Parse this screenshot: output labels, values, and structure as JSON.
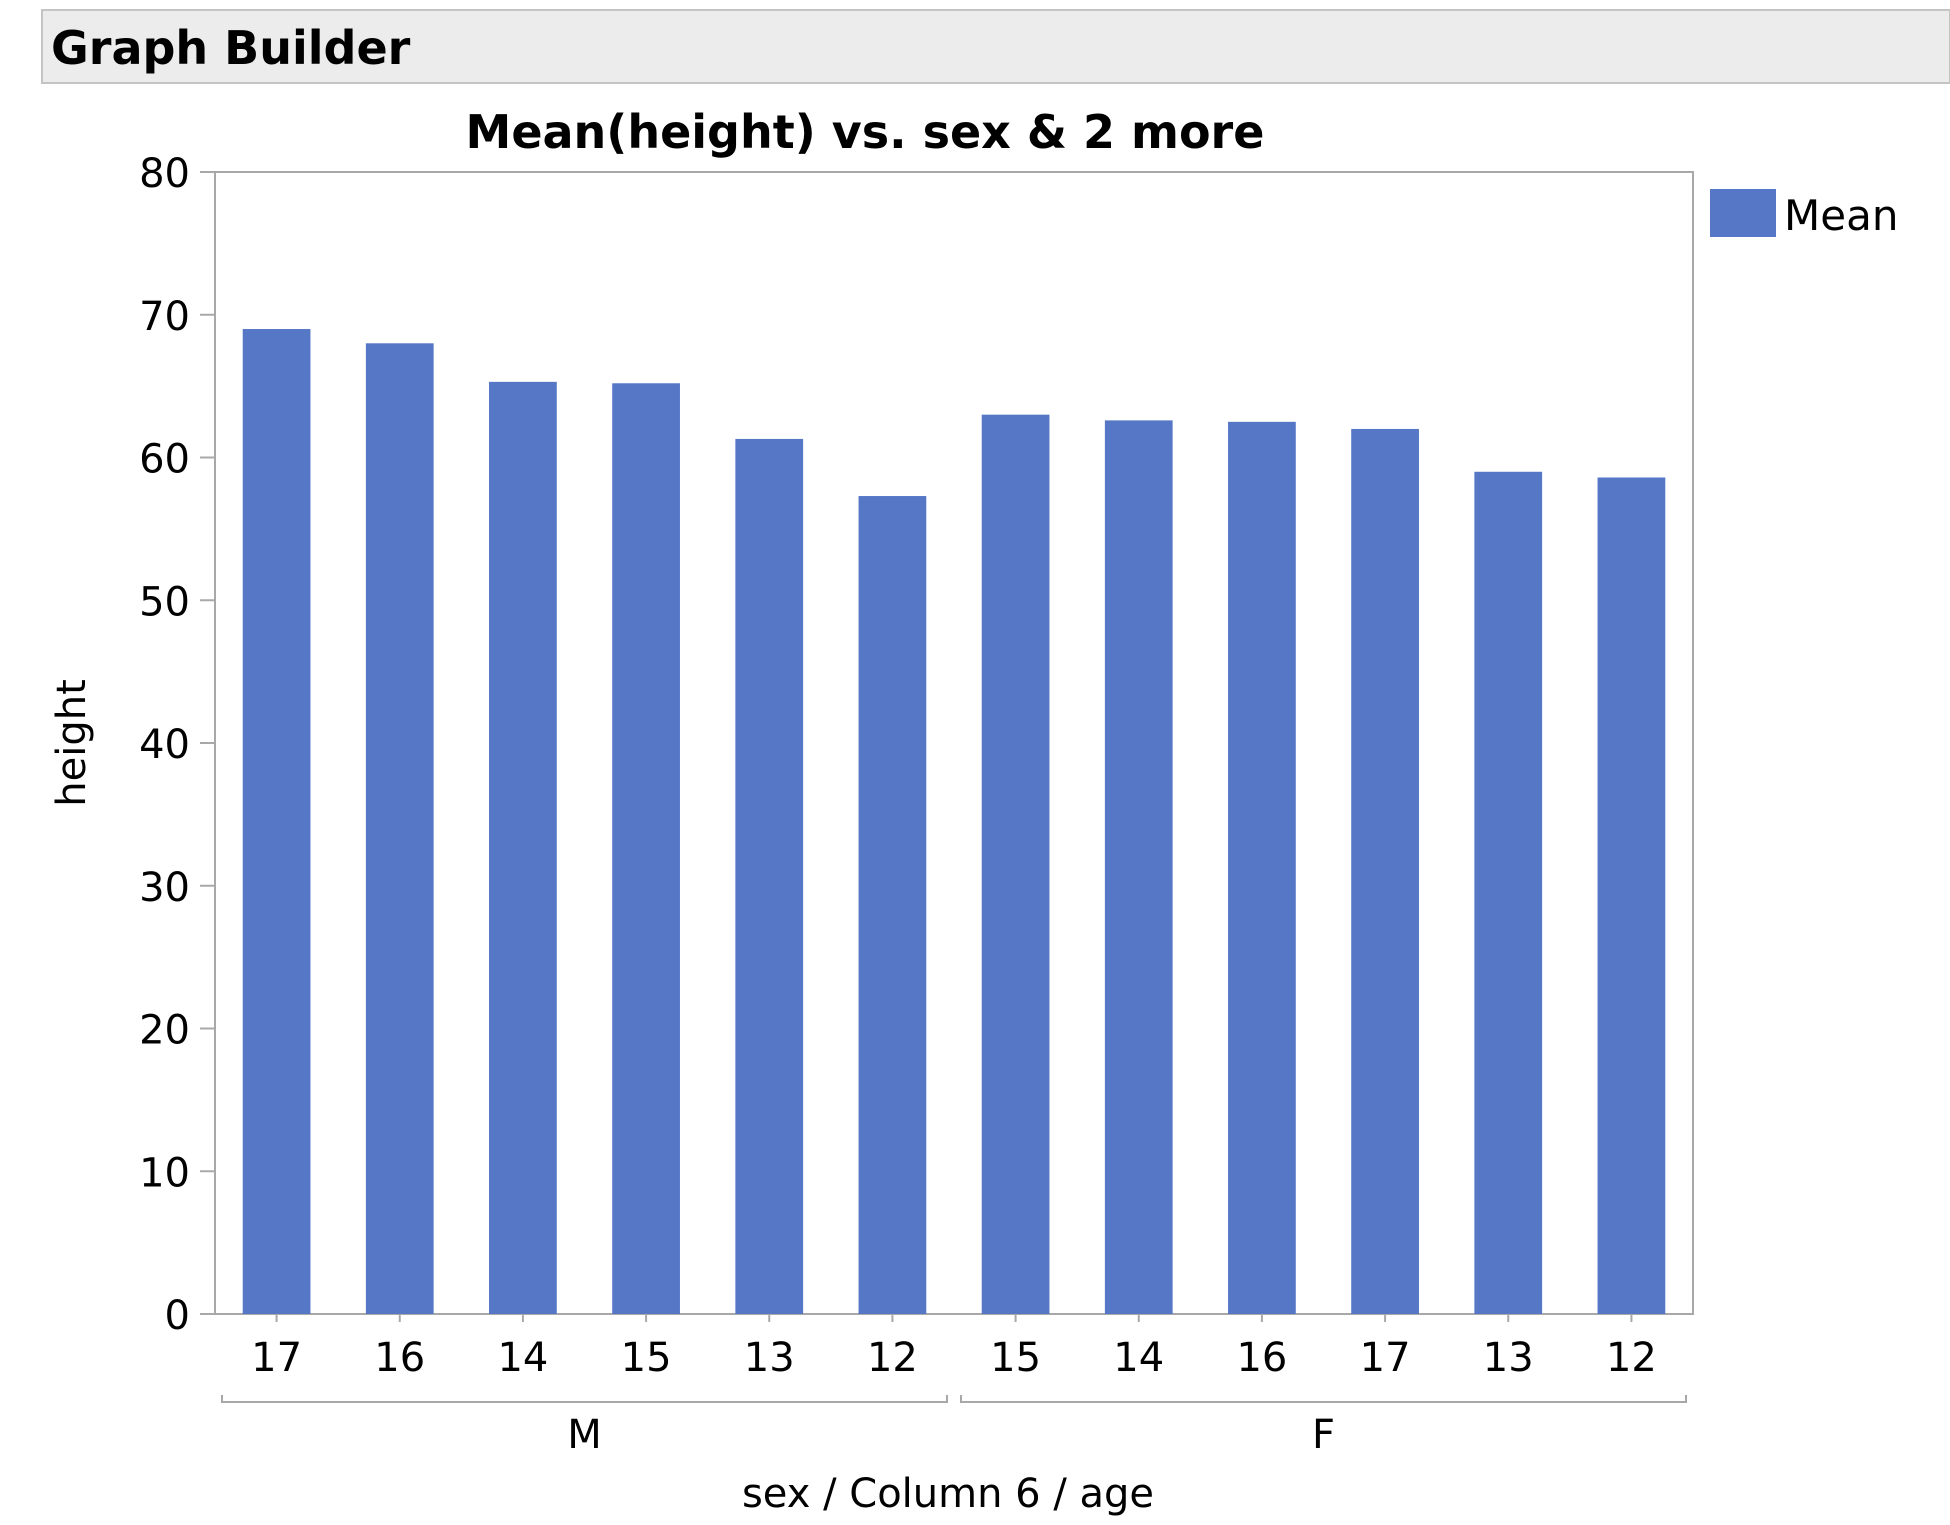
{
  "window": {
    "title": "Graph Builder"
  },
  "chart_data": {
    "type": "bar",
    "title": "Mean(height) vs. sex & 2 more",
    "xlabel": "sex / Column 6 / age",
    "ylabel": "height",
    "ylim": [
      0,
      80
    ],
    "yticks": [
      0,
      10,
      20,
      30,
      40,
      50,
      60,
      70,
      80
    ],
    "grid": false,
    "legend": {
      "placement": "top-right",
      "entries": [
        "Mean"
      ]
    },
    "groups": [
      {
        "label": "M",
        "categories": [
          "17",
          "16",
          "14",
          "15",
          "13",
          "12"
        ],
        "values": [
          69.0,
          68.0,
          65.3,
          65.2,
          61.3,
          57.3
        ]
      },
      {
        "label": "F",
        "categories": [
          "15",
          "14",
          "16",
          "17",
          "13",
          "12"
        ],
        "values": [
          63.0,
          62.6,
          62.5,
          62.0,
          59.0,
          58.6
        ]
      }
    ],
    "series": [
      {
        "name": "Mean",
        "color": "#5577c6",
        "values": [
          69.0,
          68.0,
          65.3,
          65.2,
          61.3,
          57.3,
          63.0,
          62.6,
          62.5,
          62.0,
          59.0,
          58.6
        ]
      }
    ],
    "colors": {
      "bar": "#5577c6",
      "frame": "#a8a8a8",
      "text": "#000000"
    }
  }
}
